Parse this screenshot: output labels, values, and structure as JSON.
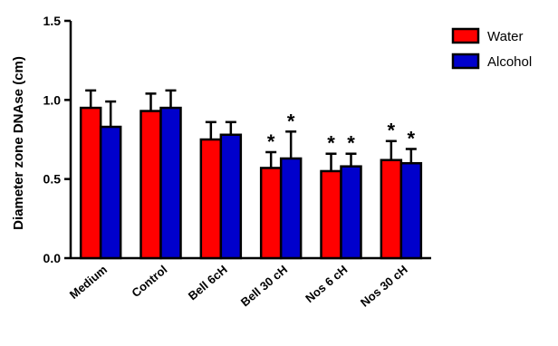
{
  "chart_data": {
    "type": "bar",
    "title": "",
    "xlabel": "",
    "ylabel": "Diameter zone DNAse (cm)",
    "ylim": [
      0,
      1.5
    ],
    "yticks": [
      "0.0",
      "0.5",
      "1.0",
      "1.5"
    ],
    "ytick_values": [
      0,
      0.5,
      1.0,
      1.5
    ],
    "grid": false,
    "legend_position": "top-right",
    "categories": [
      "Medium",
      "Control",
      "Bell 6cH",
      "Bell 30  cH",
      "Nos 6 cH",
      "Nos 30 cH"
    ],
    "series": [
      {
        "name": "Water",
        "color": "#ff0000",
        "values": [
          0.95,
          0.93,
          0.75,
          0.57,
          0.55,
          0.62
        ],
        "error": [
          0.11,
          0.11,
          0.11,
          0.1,
          0.11,
          0.12
        ],
        "annotations": [
          "",
          "",
          "",
          "*",
          "*",
          "*"
        ]
      },
      {
        "name": "Alcohol",
        "color": "#0000cc",
        "values": [
          0.83,
          0.95,
          0.78,
          0.63,
          0.58,
          0.6
        ],
        "error": [
          0.16,
          0.11,
          0.08,
          0.17,
          0.08,
          0.09
        ],
        "annotations": [
          "",
          "",
          "",
          "*",
          "*",
          "*"
        ]
      }
    ]
  }
}
